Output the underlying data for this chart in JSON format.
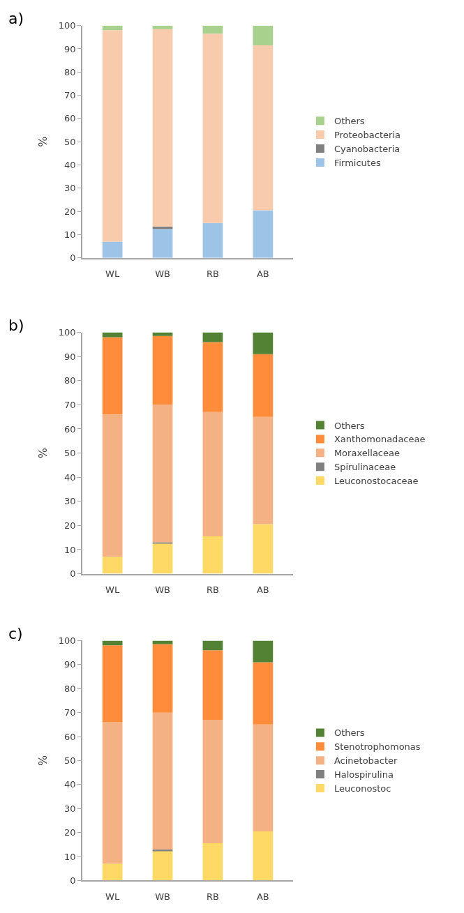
{
  "chart_data": [
    {
      "type": "bar",
      "title": "a)",
      "ylabel": "%",
      "categories": [
        "WL",
        "WB",
        "RB",
        "AB"
      ],
      "stacked": true,
      "ylim": [
        0,
        100
      ],
      "yticks": [
        0,
        10,
        20,
        30,
        40,
        50,
        60,
        70,
        80,
        90,
        100
      ],
      "legend": "right",
      "series": [
        {
          "name": "Firmicutes",
          "color": "#9dc3e6",
          "values": [
            7,
            12.5,
            15,
            20.5
          ]
        },
        {
          "name": "Cyanobacteria",
          "color": "#808080",
          "values": [
            0,
            1,
            0,
            0
          ]
        },
        {
          "name": "Proteobacteria",
          "color": "#f8cbad",
          "values": [
            91,
            85,
            81.5,
            71
          ]
        },
        {
          "name": "Others",
          "color": "#a9d18e",
          "values": [
            2,
            1.5,
            3.5,
            8.5
          ]
        }
      ]
    },
    {
      "type": "bar",
      "title": "b)",
      "ylabel": "%",
      "categories": [
        "WL",
        "WB",
        "RB",
        "AB"
      ],
      "stacked": true,
      "ylim": [
        0,
        100
      ],
      "yticks": [
        0,
        10,
        20,
        30,
        40,
        50,
        60,
        70,
        80,
        90,
        100
      ],
      "legend": "right",
      "series": [
        {
          "name": "Leuconostocaceae",
          "color": "#ffd966",
          "values": [
            7,
            12.5,
            15.5,
            20.5
          ]
        },
        {
          "name": "Spirulinaceae",
          "color": "#808080",
          "values": [
            0,
            0.5,
            0,
            0
          ]
        },
        {
          "name": "Moraxellaceae",
          "color": "#f4b183",
          "values": [
            59,
            57,
            51.5,
            44.5
          ]
        },
        {
          "name": "Xanthomonadaceae",
          "color": "#ff8c3a",
          "values": [
            32,
            28.5,
            29,
            26
          ]
        },
        {
          "name": "Others",
          "color": "#548235",
          "values": [
            2,
            1.5,
            4,
            9
          ]
        }
      ]
    },
    {
      "type": "bar",
      "title": "c)",
      "ylabel": "%",
      "categories": [
        "WL",
        "WB",
        "RB",
        "AB"
      ],
      "stacked": true,
      "ylim": [
        0,
        100
      ],
      "yticks": [
        0,
        10,
        20,
        30,
        40,
        50,
        60,
        70,
        80,
        90,
        100
      ],
      "legend": "right",
      "series": [
        {
          "name": "Leuconostoc",
          "color": "#ffd966",
          "values": [
            7,
            12.5,
            15.5,
            20.5
          ]
        },
        {
          "name": "Halospirulina",
          "color": "#808080",
          "values": [
            0,
            0.5,
            0,
            0
          ]
        },
        {
          "name": "Acinetobacter",
          "color": "#f4b183",
          "values": [
            59,
            57,
            51.5,
            44.5
          ]
        },
        {
          "name": "Stenotrophomonas",
          "color": "#ff8c3a",
          "values": [
            32,
            28.5,
            29,
            26
          ]
        },
        {
          "name": "Others",
          "color": "#548235",
          "values": [
            2,
            1.5,
            4,
            9
          ]
        }
      ]
    }
  ]
}
